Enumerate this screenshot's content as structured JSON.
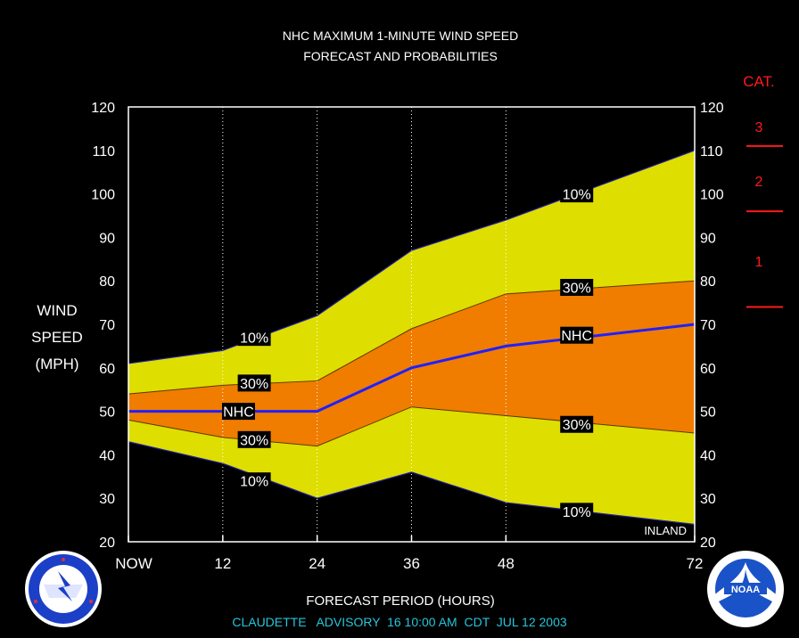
{
  "chart_data": {
    "type": "area",
    "title_line1": "NHC MAXIMUM 1-MINUTE WIND SPEED",
    "title_line2": "FORECAST AND PROBABILITIES",
    "ylabel_line1": "WIND",
    "ylabel_line2": "SPEED",
    "ylabel_line3": "(MPH)",
    "xlabel": "FORECAST PERIOD (HOURS)",
    "advisory": "CLAUDETTE   ADVISORY  16 10:00 AM  CDT  JUL 12 2003",
    "inland_label": "INLAND",
    "xlim": [
      0,
      72
    ],
    "ylim": [
      20,
      120
    ],
    "x_ticks": [
      {
        "value": 0,
        "label": "NOW"
      },
      {
        "value": 12,
        "label": "12"
      },
      {
        "value": 24,
        "label": "24"
      },
      {
        "value": 36,
        "label": "36"
      },
      {
        "value": 48,
        "label": "48"
      },
      {
        "value": 72,
        "label": "72"
      }
    ],
    "y_ticks": [
      20,
      30,
      40,
      50,
      60,
      70,
      80,
      90,
      100,
      110,
      120
    ],
    "x": [
      0,
      12,
      24,
      36,
      48,
      72
    ],
    "series": [
      {
        "name": "10%",
        "role": "upper10",
        "values": [
          61,
          64,
          72,
          87,
          94,
          110
        ]
      },
      {
        "name": "30%",
        "role": "upper30",
        "values": [
          54,
          56,
          57,
          69,
          77,
          80
        ]
      },
      {
        "name": "NHC",
        "role": "nhc",
        "values": [
          50,
          50,
          50,
          60,
          65,
          70
        ]
      },
      {
        "name": "30%",
        "role": "lower30",
        "values": [
          48,
          44,
          42,
          51,
          49,
          45
        ]
      },
      {
        "name": "10%",
        "role": "lower10",
        "values": [
          43,
          38,
          30,
          36,
          29,
          24
        ]
      }
    ],
    "band_labels": [
      {
        "text": "10%",
        "x": 16,
        "y": 67
      },
      {
        "text": "30%",
        "x": 16,
        "y": 56.5
      },
      {
        "text": "NHC",
        "x": 14,
        "y": 50
      },
      {
        "text": "30%",
        "x": 16,
        "y": 43.5
      },
      {
        "text": "10%",
        "x": 16,
        "y": 34
      },
      {
        "text": "10%",
        "x": 57,
        "y": 100
      },
      {
        "text": "30%",
        "x": 57,
        "y": 78.5
      },
      {
        "text": "NHC",
        "x": 57,
        "y": 67.5
      },
      {
        "text": "30%",
        "x": 57,
        "y": 47
      },
      {
        "text": "10%",
        "x": 57,
        "y": 27
      }
    ],
    "category_header": "CAT.",
    "categories": [
      {
        "label": "1",
        "lower": 74,
        "upper": 95
      },
      {
        "label": "2",
        "lower": 96,
        "upper": 110
      },
      {
        "label": "3",
        "lower": 111,
        "upper": 120
      }
    ],
    "colors": {
      "outer_band": "#dede00",
      "inner_band": "#f07c00",
      "nhc_line": "#2020ff",
      "category": "#ff1a1a",
      "advisory": "#26c6da"
    }
  },
  "logos": {
    "left": "national-weather-service-logo",
    "right": "noaa-logo"
  }
}
